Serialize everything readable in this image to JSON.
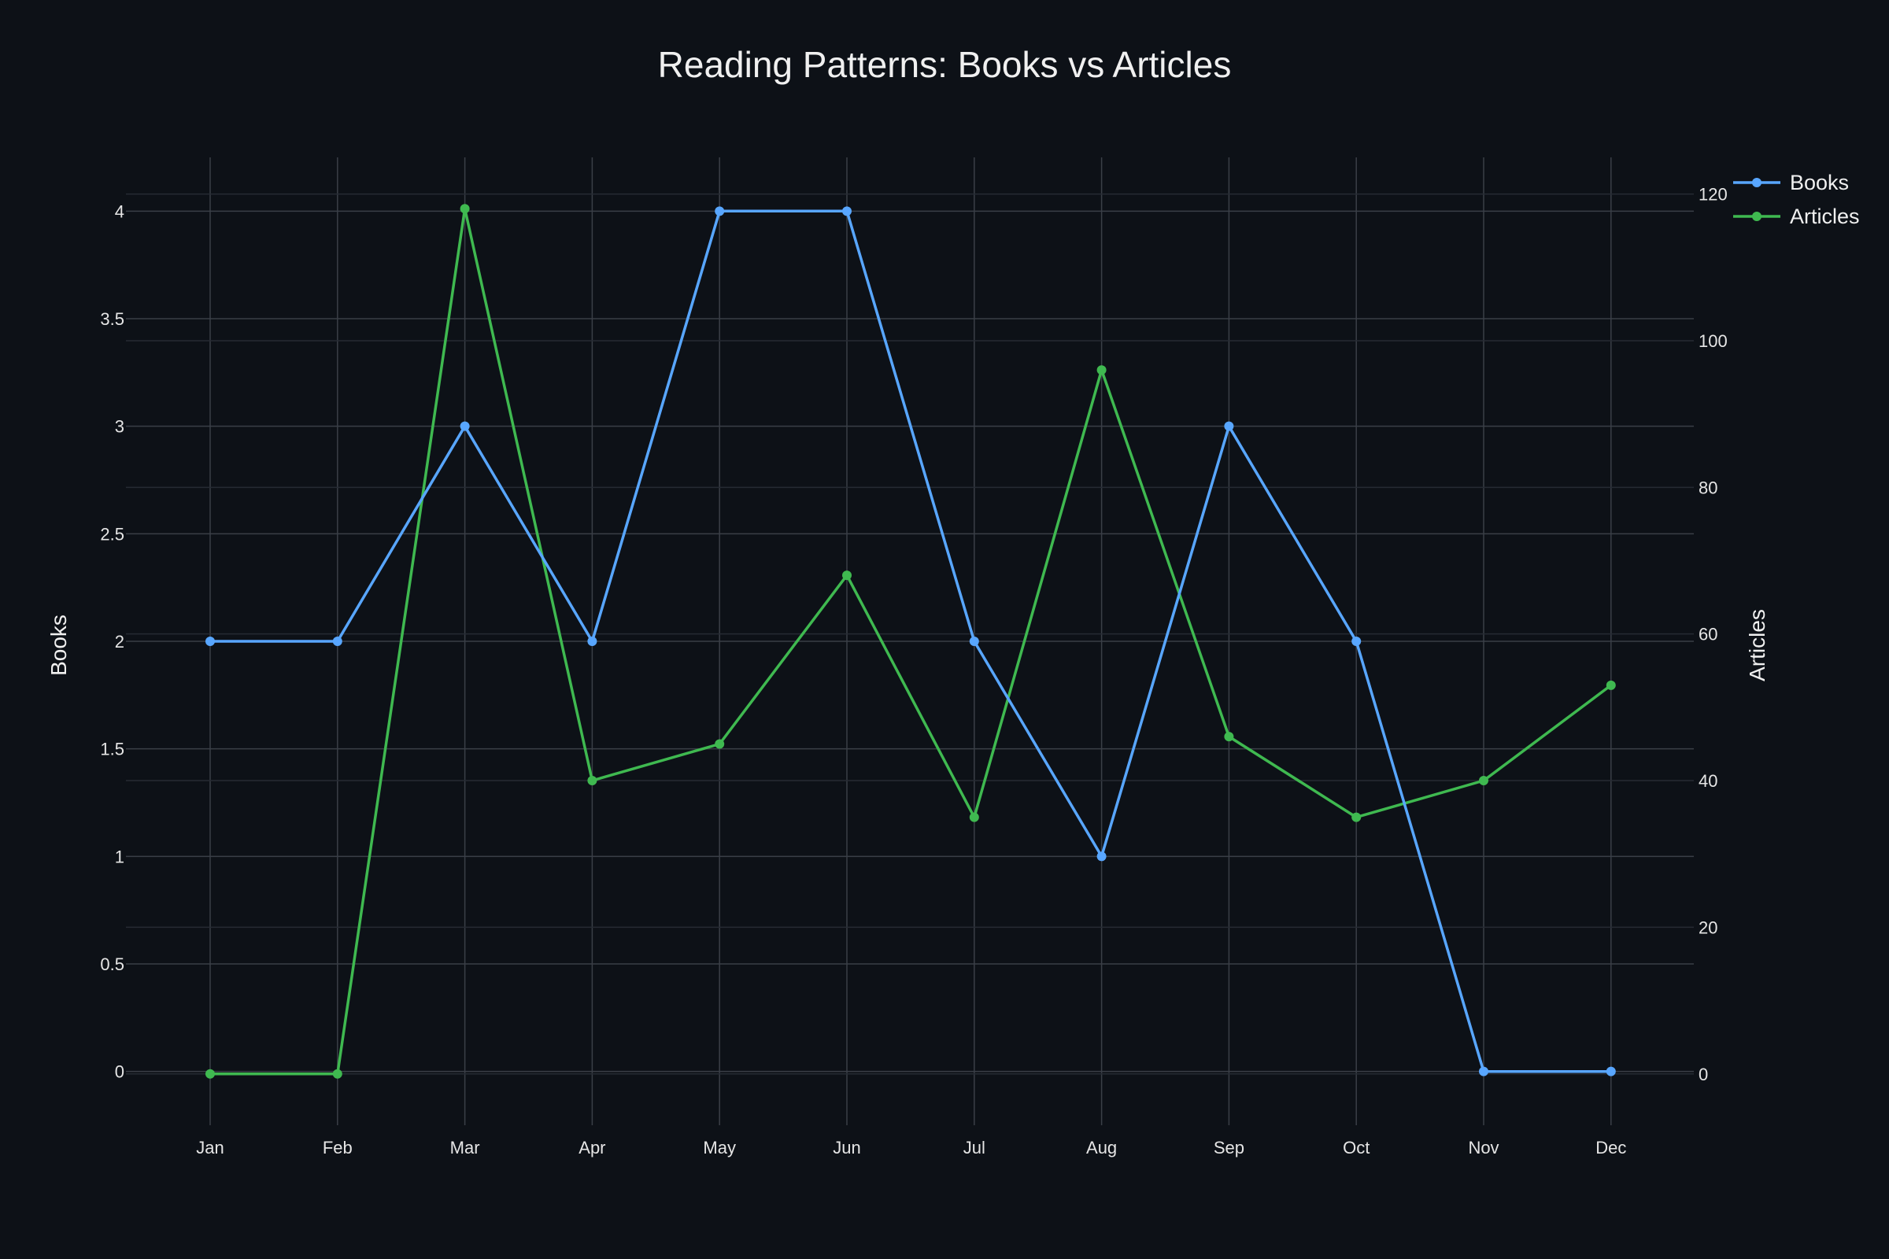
{
  "chart_data": {
    "type": "line",
    "title": "Reading Patterns: Books vs Articles",
    "categories": [
      "Jan",
      "Feb",
      "Mar",
      "Apr",
      "May",
      "Jun",
      "Jul",
      "Aug",
      "Sep",
      "Oct",
      "Nov",
      "Dec"
    ],
    "y_left": {
      "label": "Books",
      "range": [
        -0.25,
        4.25
      ],
      "ticks": [
        0,
        0.5,
        1,
        1.5,
        2,
        2.5,
        3,
        3.5,
        4
      ],
      "tick_labels": [
        "0",
        "0.5",
        "1",
        "1.5",
        "2",
        "2.5",
        "3",
        "3.5",
        "4"
      ]
    },
    "y_right": {
      "label": "Articles",
      "range": [
        -7,
        125
      ],
      "ticks": [
        0,
        20,
        40,
        60,
        80,
        100,
        120
      ],
      "tick_labels": [
        "0",
        "20",
        "40",
        "60",
        "80",
        "100",
        "120"
      ]
    },
    "series": [
      {
        "name": "Books",
        "axis": "left",
        "color": "#58a6ff",
        "values": [
          2,
          2,
          3,
          2,
          4,
          4,
          2,
          1,
          3,
          2,
          0,
          0
        ]
      },
      {
        "name": "Articles",
        "axis": "right",
        "color": "#3fb950",
        "values": [
          0,
          0,
          118,
          40,
          45,
          68,
          35,
          96,
          46,
          35,
          40,
          53
        ]
      }
    ],
    "grid": true,
    "legend_position": "top-right",
    "background": "#0d1117"
  }
}
